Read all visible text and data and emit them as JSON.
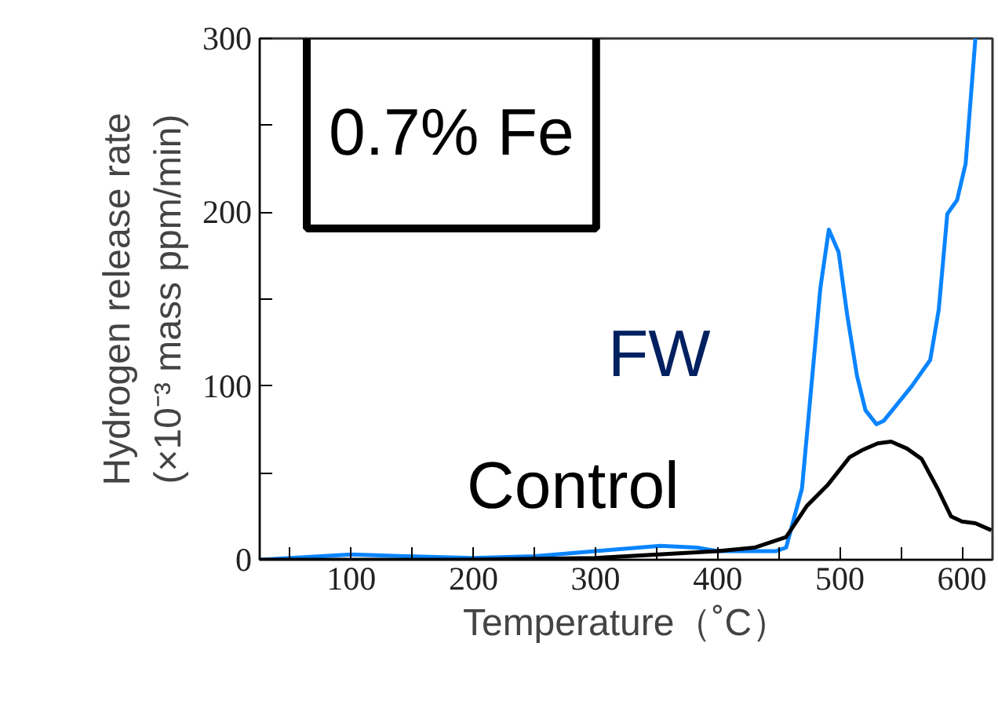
{
  "chart_data": {
    "type": "line",
    "xlabel": "Temperature（˚C）",
    "ylabel": "Hydrogen release rate\n(×10⁻³ mass ppm/min)",
    "annotations": [
      "0.7% Fe"
    ],
    "xlim": [
      25,
      625
    ],
    "ylim": [
      0,
      300
    ],
    "xticks": [
      {
        "value": 50,
        "label": null
      },
      100,
      {
        "value": 150,
        "label": null
      },
      200,
      {
        "value": 250,
        "label": null
      },
      300,
      {
        "value": 350,
        "label": null
      },
      400,
      {
        "value": 450,
        "label": null
      },
      500,
      {
        "value": 550,
        "label": null
      },
      600
    ],
    "yticks": [
      0,
      {
        "value": 50,
        "label": null
      },
      100,
      {
        "value": 150,
        "label": null
      },
      200,
      {
        "value": 250,
        "label": null
      },
      300
    ],
    "grid": false,
    "marker": "none",
    "line_style": "solid",
    "series": [
      {
        "name": "FW",
        "color": "#0a84ff",
        "x": [
          25,
          100,
          147,
          199,
          250,
          300,
          353,
          383,
          400,
          448,
          456,
          469,
          484,
          491,
          499,
          506,
          514,
          521,
          530,
          536,
          559,
          574,
          581,
          588,
          596,
          603,
          611
        ],
        "values": [
          0,
          3,
          2,
          1,
          2,
          5,
          8,
          7,
          5,
          5,
          7,
          41,
          156,
          190,
          177,
          141,
          106,
          86,
          78,
          80,
          100,
          115,
          144,
          199,
          207,
          228,
          300
        ]
      },
      {
        "name": "Control",
        "color": "#000000",
        "x": [
          25,
          190,
          300,
          400,
          430,
          456,
          473,
          490,
          508,
          518,
          531,
          542,
          555,
          567,
          580,
          591,
          600,
          611,
          624
        ],
        "values": [
          0,
          0,
          1,
          5,
          7,
          13,
          31,
          43,
          59,
          63,
          67,
          68,
          64,
          58,
          41,
          25,
          22,
          21,
          17
        ]
      }
    ]
  }
}
